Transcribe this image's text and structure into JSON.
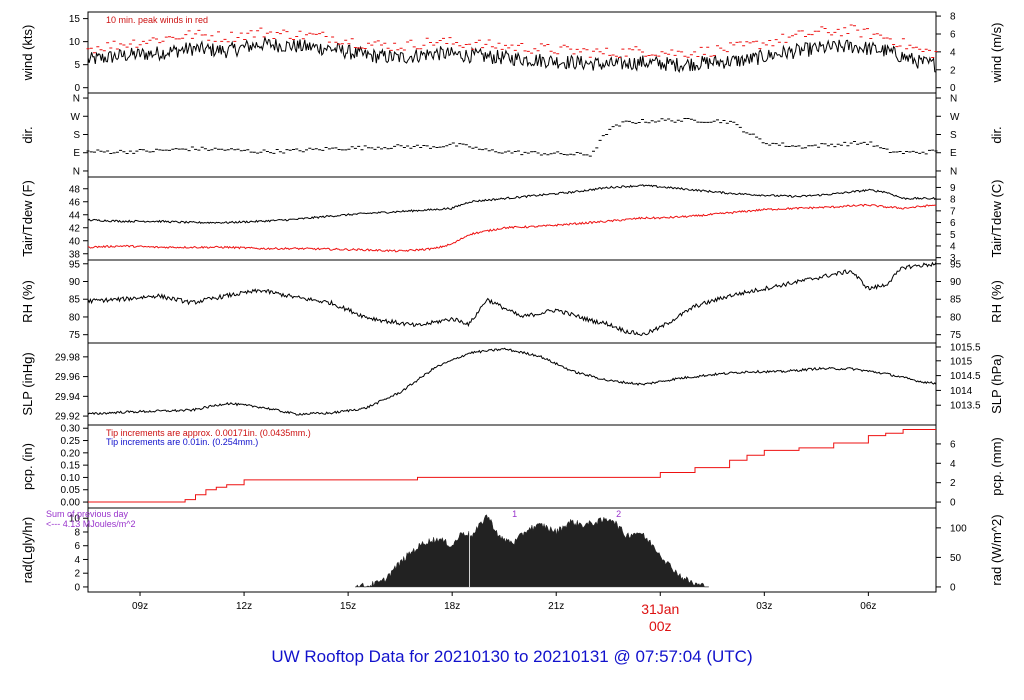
{
  "title": "UW Rooftop Data for 20210130  to  20210131 @ 07:57:04  (UTC)",
  "colors": {
    "primary": "#000000",
    "secondary": "#ee1111",
    "note_red": "#cc1111",
    "note_blue": "#1111cc",
    "note_purple": "#9933cc",
    "title": "#1212cc",
    "date": "#dd1111"
  },
  "chart_data": {
    "type": "line",
    "x_axis": {
      "unit": "UTC hour (hours after 2021-01-30 00z)",
      "range": [
        7.5,
        31.95
      ],
      "ticks": [
        9,
        12,
        15,
        18,
        21,
        24,
        27,
        30
      ],
      "tick_labels": [
        "09z",
        "12z",
        "15z",
        "18z",
        "21z",
        "",
        "03z",
        "06z"
      ],
      "date_label": "31Jan",
      "date_sub_label": "00z"
    },
    "panels": [
      {
        "id": "wind",
        "left_label": "wind (kts)",
        "right_label": "wind (m/s)",
        "left_ticks": [
          0,
          5,
          10,
          15
        ],
        "left_range": [
          -0.5,
          16
        ],
        "right_ticks": [
          0,
          2,
          4,
          6,
          8
        ],
        "right_tick_values_left_units": [
          0,
          3.89,
          7.78,
          11.66,
          15.55
        ],
        "annotations": [
          {
            "text": "10 min. peak winds in red",
            "color": "#cc1111"
          }
        ],
        "series": [
          {
            "name": "wind speed",
            "style": "line",
            "color": "#000000",
            "noise": 1.6,
            "x": [
              7.5,
              8.5,
              9.5,
              10.5,
              11.5,
              12.5,
              13.5,
              14.5,
              15.5,
              16.5,
              17.5,
              18.5,
              19.5,
              20.5,
              21.5,
              22.5,
              23.5,
              24.5,
              25.5,
              26.5,
              27.5,
              28.5,
              29.5,
              30.5,
              31.5,
              31.95
            ],
            "y": [
              6,
              7,
              7.5,
              8.5,
              8,
              9.5,
              9,
              8.5,
              7,
              6.5,
              7.5,
              7,
              6.5,
              6,
              5.5,
              5,
              5.5,
              5,
              5.5,
              6,
              7.5,
              8.5,
              9,
              8,
              5.5,
              5
            ]
          },
          {
            "name": "10 min. peak winds",
            "style": "dash",
            "color": "#ee1111",
            "noise": 1.2,
            "x": [
              7.5,
              8.5,
              9.5,
              10.5,
              11.5,
              12.5,
              13.5,
              14.5,
              15.5,
              16.5,
              17.5,
              18.5,
              19.5,
              20.5,
              21.5,
              22.5,
              23.5,
              24.5,
              25.5,
              26.5,
              27.5,
              28.5,
              29.5,
              30.5,
              31.5,
              31.95
            ],
            "y": [
              8.5,
              9.5,
              10.5,
              11.5,
              11,
              12,
              11.5,
              11,
              9.5,
              9,
              10,
              9.5,
              9,
              8.5,
              8,
              7.5,
              8,
              7.5,
              8,
              9,
              10.5,
              12,
              12.5,
              11,
              8,
              7.5
            ]
          }
        ]
      },
      {
        "id": "dir",
        "left_label": "dir.",
        "right_label": "dir.",
        "left_ticks": [
          0,
          90,
          180,
          270,
          360
        ],
        "left_tick_labels": [
          "N",
          "E",
          "S",
          "W",
          "N"
        ],
        "left_range": [
          -15,
          375
        ],
        "right_ticks": [
          0,
          90,
          180,
          270,
          360
        ],
        "right_tick_labels": [
          "N",
          "E",
          "S",
          "W",
          "N"
        ],
        "series": [
          {
            "name": "direction",
            "style": "dash",
            "color": "#000000",
            "noise": 10,
            "x": [
              7.5,
              8.5,
              9.5,
              10.5,
              11.5,
              12.5,
              13.5,
              14.5,
              15.5,
              16.5,
              17.5,
              18,
              18.5,
              19,
              20,
              21,
              22,
              22.5,
              23,
              24,
              25,
              26,
              27,
              28,
              29,
              30,
              30.5,
              31,
              31.95
            ],
            "y": [
              95,
              95,
              100,
              110,
              105,
              95,
              100,
              110,
              115,
              120,
              120,
              130,
              120,
              100,
              90,
              85,
              80,
              200,
              240,
              250,
              250,
              245,
              140,
              120,
              130,
              140,
              100,
              90,
              95
            ]
          }
        ]
      },
      {
        "id": "temp",
        "left_label": "Tair/Tdew (F)",
        "right_label": "Tair/Tdew (C)",
        "left_ticks": [
          38,
          40,
          42,
          44,
          46,
          48
        ],
        "left_range": [
          37.5,
          49.5
        ],
        "right_ticks": [
          3,
          4,
          5,
          6,
          7,
          8,
          9
        ],
        "right_tick_values_left_units": [
          37.4,
          39.2,
          41,
          42.8,
          44.6,
          46.4,
          48.2
        ],
        "series": [
          {
            "name": "Tair",
            "style": "line",
            "color": "#000000",
            "noise": 0.15,
            "x": [
              7.5,
              8.5,
              9.5,
              10.5,
              11.5,
              12.5,
              13.5,
              14.5,
              15.5,
              16.5,
              17.5,
              18,
              18.5,
              19.5,
              20.5,
              21.5,
              22.5,
              23.5,
              24,
              25,
              26,
              27,
              28,
              29,
              30,
              30.5,
              31,
              31.95
            ],
            "y": [
              43.2,
              43,
              43,
              42.8,
              42.8,
              43,
              43.3,
              43.8,
              44.2,
              44.5,
              44.8,
              45,
              46,
              46.5,
              47,
              47.5,
              48.2,
              48.5,
              48.3,
              47.8,
              47.3,
              47,
              46.8,
              47.2,
              47.8,
              47.5,
              46.5,
              46.5
            ]
          },
          {
            "name": "Tdew",
            "style": "line",
            "color": "#ee1111",
            "noise": 0.15,
            "x": [
              7.5,
              8.5,
              9.5,
              10.5,
              11.5,
              12.5,
              13.5,
              14.5,
              15.5,
              16.5,
              17.5,
              18,
              18.5,
              19.5,
              20.5,
              21.5,
              22.5,
              23.5,
              24,
              25,
              26,
              27,
              28,
              29,
              30,
              30.5,
              31,
              31.95
            ],
            "y": [
              39,
              39.2,
              39,
              39,
              39,
              38.8,
              38.8,
              38.7,
              38.6,
              38.4,
              38.8,
              39.5,
              41,
              42,
              42.2,
              42.6,
              43,
              43.5,
              43.5,
              43.8,
              44.3,
              44.8,
              45,
              45.2,
              45.5,
              45.2,
              45,
              45.5
            ]
          }
        ]
      },
      {
        "id": "rh",
        "left_label": "RH (%)",
        "right_label": "RH (%)",
        "left_ticks": [
          75,
          80,
          85,
          90,
          95
        ],
        "left_range": [
          73.5,
          95.5
        ],
        "right_ticks": [
          75,
          80,
          85,
          90,
          95
        ],
        "right_tick_values_left_units": [
          75,
          80,
          85,
          90,
          95
        ],
        "series": [
          {
            "name": "RH",
            "style": "line",
            "color": "#000000",
            "noise": 0.6,
            "x": [
              7.5,
              8.5,
              9.5,
              10.5,
              11.5,
              12.5,
              13.5,
              14.5,
              15.5,
              16,
              17,
              17.5,
              18,
              18.5,
              19,
              20,
              21,
              22,
              22.5,
              23,
              23.5,
              24,
              25,
              26,
              27,
              28,
              29,
              29.5,
              30,
              30.5,
              31,
              31.95
            ],
            "y": [
              84.5,
              85,
              86,
              84,
              86,
              87.5,
              85.5,
              84,
              80,
              79,
              77.5,
              78.5,
              79.5,
              78,
              85,
              80,
              82,
              79,
              78,
              76,
              75,
              77,
              83,
              86,
              88,
              90,
              92,
              93,
              88,
              89,
              94,
              95
            ]
          }
        ]
      },
      {
        "id": "slp",
        "left_label": "SLP (inHg)",
        "right_label": "SLP (hPa)",
        "left_ticks": [
          29.92,
          29.94,
          29.96,
          29.98
        ],
        "left_range": [
          29.914,
          29.992
        ],
        "right_ticks": [
          1013.5,
          1014,
          1014.5,
          1015,
          1015.5
        ],
        "right_tick_values_left_units": [
          29.931,
          29.946,
          29.961,
          29.976,
          29.99
        ],
        "series": [
          {
            "name": "SLP",
            "style": "line",
            "color": "#000000",
            "noise": 0.0012,
            "x": [
              7.5,
              8.5,
              9.5,
              10.5,
              11.5,
              12.5,
              13.5,
              14.5,
              15.5,
              16.5,
              17.5,
              18.5,
              19.5,
              20.5,
              21.5,
              22.5,
              23.5,
              24.5,
              25.5,
              26.5,
              27.5,
              28.5,
              29.5,
              30.5,
              31.5,
              31.95
            ],
            "y": [
              29.922,
              29.924,
              29.925,
              29.926,
              29.933,
              29.929,
              29.922,
              29.923,
              29.928,
              29.944,
              29.969,
              29.984,
              29.988,
              29.981,
              29.965,
              29.956,
              29.952,
              29.958,
              29.962,
              29.965,
              29.965,
              29.968,
              29.968,
              29.963,
              29.955,
              29.953
            ]
          }
        ]
      },
      {
        "id": "pcp",
        "left_label": "pcp. (in)",
        "right_label": "pcp. (mm)",
        "left_ticks": [
          0,
          0.05,
          0.1,
          0.15,
          0.2,
          0.25,
          0.3
        ],
        "left_tick_labels": [
          "0.00",
          "0.05",
          "0.10",
          "0.15",
          "0.20",
          "0.25",
          "0.30"
        ],
        "left_range": [
          -0.012,
          0.305
        ],
        "right_ticks": [
          0,
          2,
          4,
          6
        ],
        "right_tick_values_left_units": [
          0,
          0.0787,
          0.1575,
          0.2362
        ],
        "annotations": [
          {
            "text": "Tip increments are approx. 0.00171in. (0.0435mm.)",
            "color": "#cc1111"
          },
          {
            "text": "Tip increments are 0.01in. (0.254mm.)",
            "color": "#1111cc"
          }
        ],
        "series": [
          {
            "name": "precipitation",
            "style": "step",
            "color": "#ee1111",
            "noise": 0,
            "x": [
              7.5,
              10,
              10.3,
              10.6,
              10.9,
              11.2,
              11.5,
              12,
              14,
              17,
              24,
              25,
              26,
              26.5,
              27,
              28,
              29,
              30,
              30.5,
              31,
              31.95
            ],
            "y": [
              0,
              0,
              0.01,
              0.03,
              0.05,
              0.06,
              0.07,
              0.09,
              0.09,
              0.1,
              0.12,
              0.14,
              0.17,
              0.19,
              0.21,
              0.22,
              0.24,
              0.27,
              0.28,
              0.295,
              0.295
            ]
          }
        ]
      },
      {
        "id": "rad",
        "left_label": "rad(Lgly/hr)",
        "right_label": "rad (W/m^2)",
        "left_ticks": [
          0,
          2,
          4,
          6,
          8,
          10
        ],
        "left_range": [
          -0.3,
          11.2
        ],
        "right_ticks": [
          0,
          50,
          100
        ],
        "right_tick_values_left_units": [
          0,
          4.3,
          8.6
        ],
        "annotations": [
          {
            "text": "Sum of previous day",
            "color": "#9933cc"
          },
          {
            "text": "<--- 4.13 MJoules/m^2",
            "color": "#9933cc"
          },
          {
            "text": "1",
            "color": "#9933cc",
            "at_x": 19.8
          },
          {
            "text": "2",
            "color": "#9933cc",
            "at_x": 22.8
          }
        ],
        "series": [
          {
            "name": "radiation",
            "style": "filled",
            "color": "#222222",
            "noise": 0.5,
            "x": [
              15.2,
              15.6,
              16,
              16.4,
              16.8,
              17.2,
              17.6,
              18,
              18.3,
              18.6,
              19,
              19.4,
              19.8,
              20.2,
              20.6,
              21,
              21.4,
              21.8,
              22.2,
              22.6,
              23,
              23.4,
              23.8,
              24.2,
              24.6,
              25,
              25.4
            ],
            "y": [
              0,
              0.2,
              0.8,
              3,
              5,
              6.5,
              7,
              6,
              8,
              7.5,
              10.5,
              7,
              6.5,
              8.5,
              9,
              8,
              9.5,
              9,
              9.5,
              10,
              7.5,
              8,
              6,
              3.5,
              1.5,
              0.4,
              0
            ]
          }
        ]
      }
    ]
  }
}
